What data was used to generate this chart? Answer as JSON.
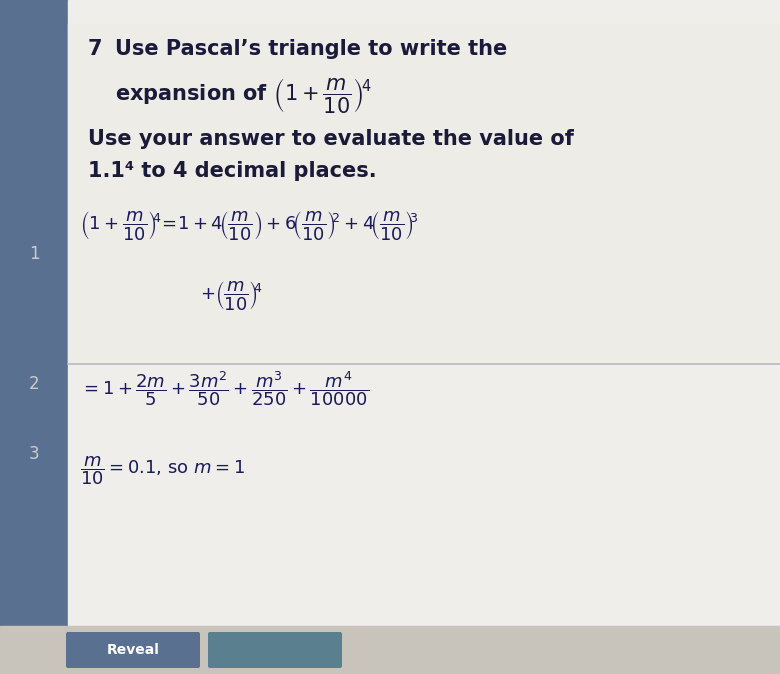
{
  "bg_top_color": "#7ab5c5",
  "bg_main_color": "#e8e6e0",
  "bg_left_color": "#5a7090",
  "question_number": "7",
  "title_line1": "Use Pascal’s triangle to write the",
  "title_line3": "Use your answer to evaluate the value of",
  "title_line4": "1.1⁴ to 4 decimal places.",
  "text_color": "#1a1a3a",
  "math_color": "#1a1a5e",
  "separator_color": "#bbbbbb",
  "left_num_1": "1",
  "left_num_2": "2",
  "left_num_3": "3",
  "btn1_color": "#5a7090",
  "btn1_text": "Reveal",
  "btn2_color": "#5a8090",
  "fs_title": 15,
  "fs_math": 13,
  "fs_small": 11
}
